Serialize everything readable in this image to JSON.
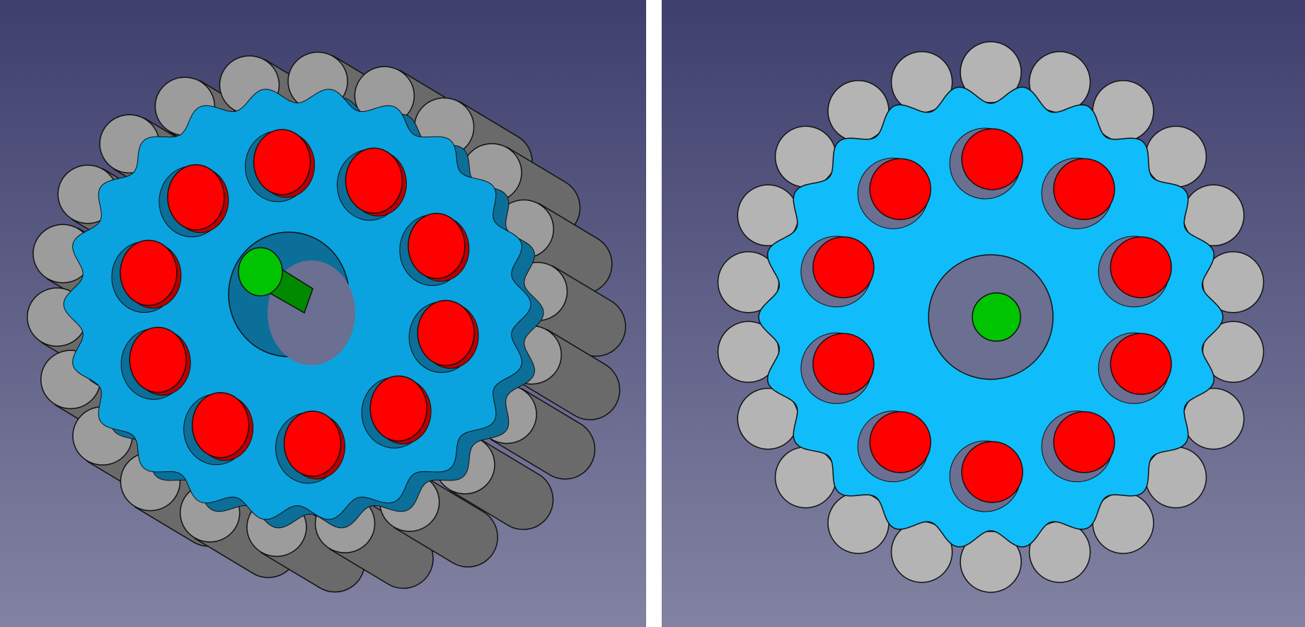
{
  "views": [
    {
      "name": "isometric-view"
    },
    {
      "name": "front-view"
    }
  ],
  "colors": {
    "background_top": "#3f3f6e",
    "background_bottom": "#8283a2",
    "separator": "#ffffff",
    "wheel_face_iso": "#0aa3e0",
    "wheel_side_iso": "#0b6f99",
    "wheel_face_front": "#10bdfa",
    "hub_shadow": "#6b6f92",
    "pin_red": "#ff0000",
    "pin_red_side": "#b80000",
    "roller_face": "#9c9c9c",
    "roller_side": "#6a6a6a",
    "roller_face_front": "#b4b4b4",
    "axle_green": "#00c400",
    "axle_green_dark": "#008a00",
    "outline": "#111111"
  },
  "model": {
    "outer_roller_count": 22,
    "inner_pin_count": 10
  }
}
